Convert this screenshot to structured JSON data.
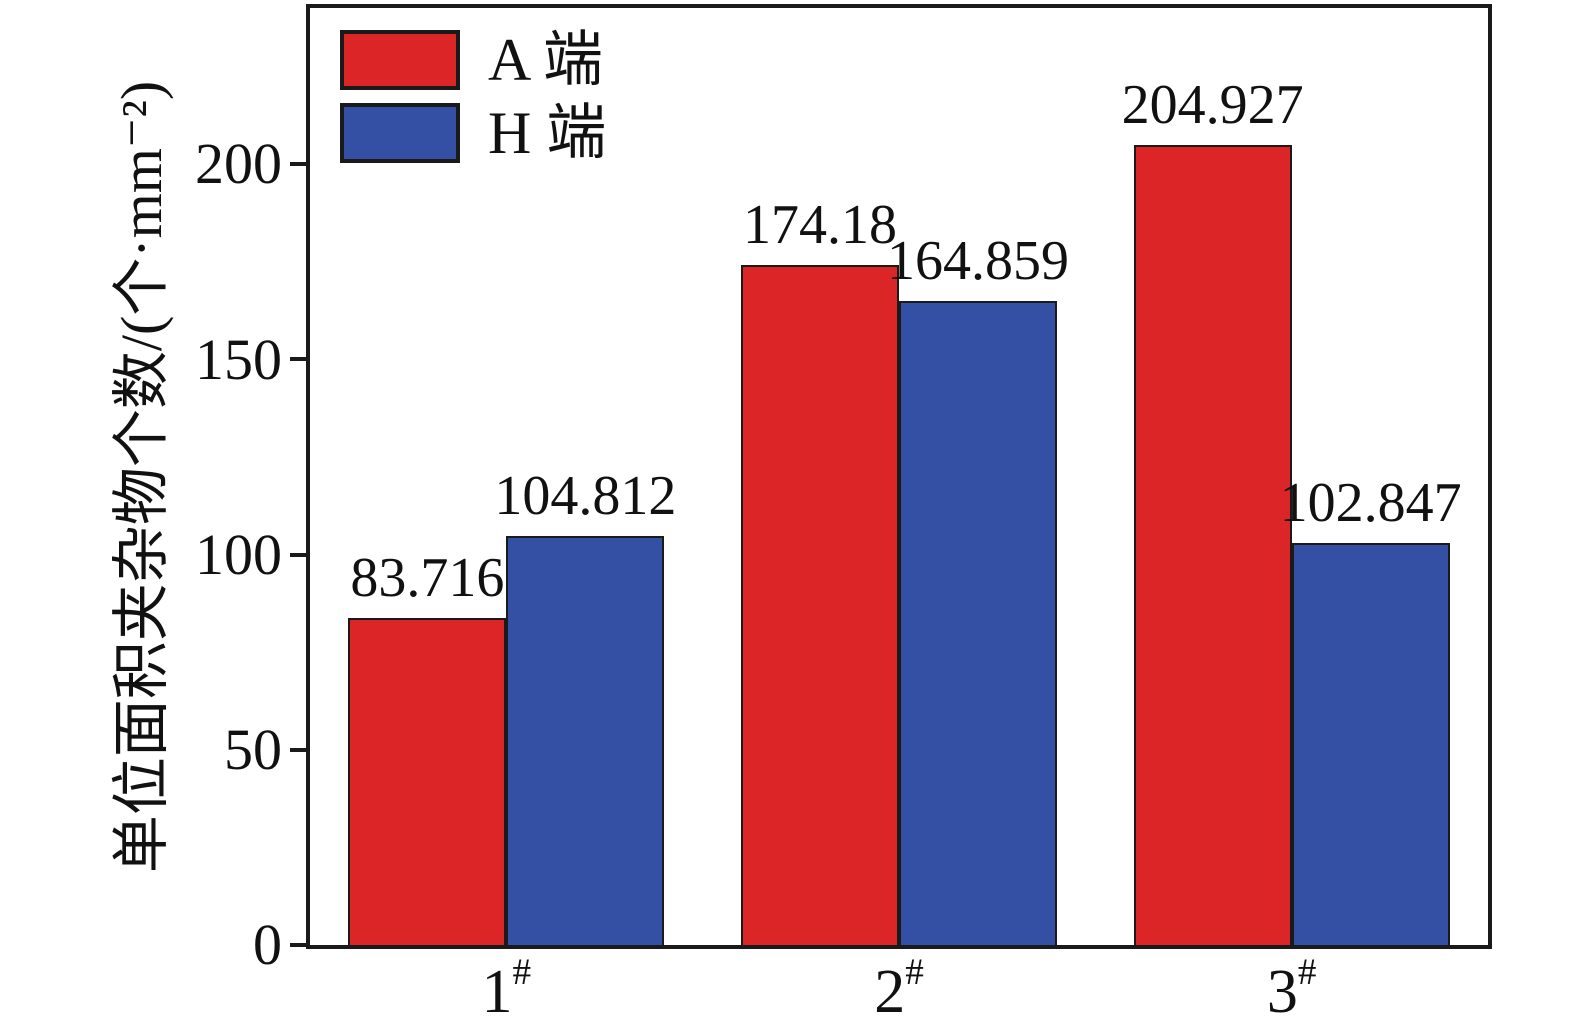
{
  "chart_data": {
    "type": "bar",
    "title": "",
    "categories": [
      "1#",
      "2#",
      "3#"
    ],
    "series": [
      {
        "name": "A 端",
        "color": "#dc2527",
        "values": [
          83.716,
          174.18,
          204.927
        ],
        "value_labels": [
          "83.716",
          "174.18",
          "204.927"
        ]
      },
      {
        "name": "H 端",
        "color": "#3450a4",
        "values": [
          104.812,
          164.859,
          102.847
        ],
        "value_labels": [
          "104.812",
          "164.859",
          "102.847"
        ]
      }
    ],
    "xlabel": "",
    "ylabel": "单位面积夹杂物个数/(个·mm⁻²)",
    "ylim": [
      0,
      240
    ],
    "yticks": [
      0,
      50,
      100,
      150,
      200
    ],
    "legend_position": "top-left",
    "grid": false,
    "frame_color": "#1a1a1a",
    "background_color": "#ffffff"
  }
}
